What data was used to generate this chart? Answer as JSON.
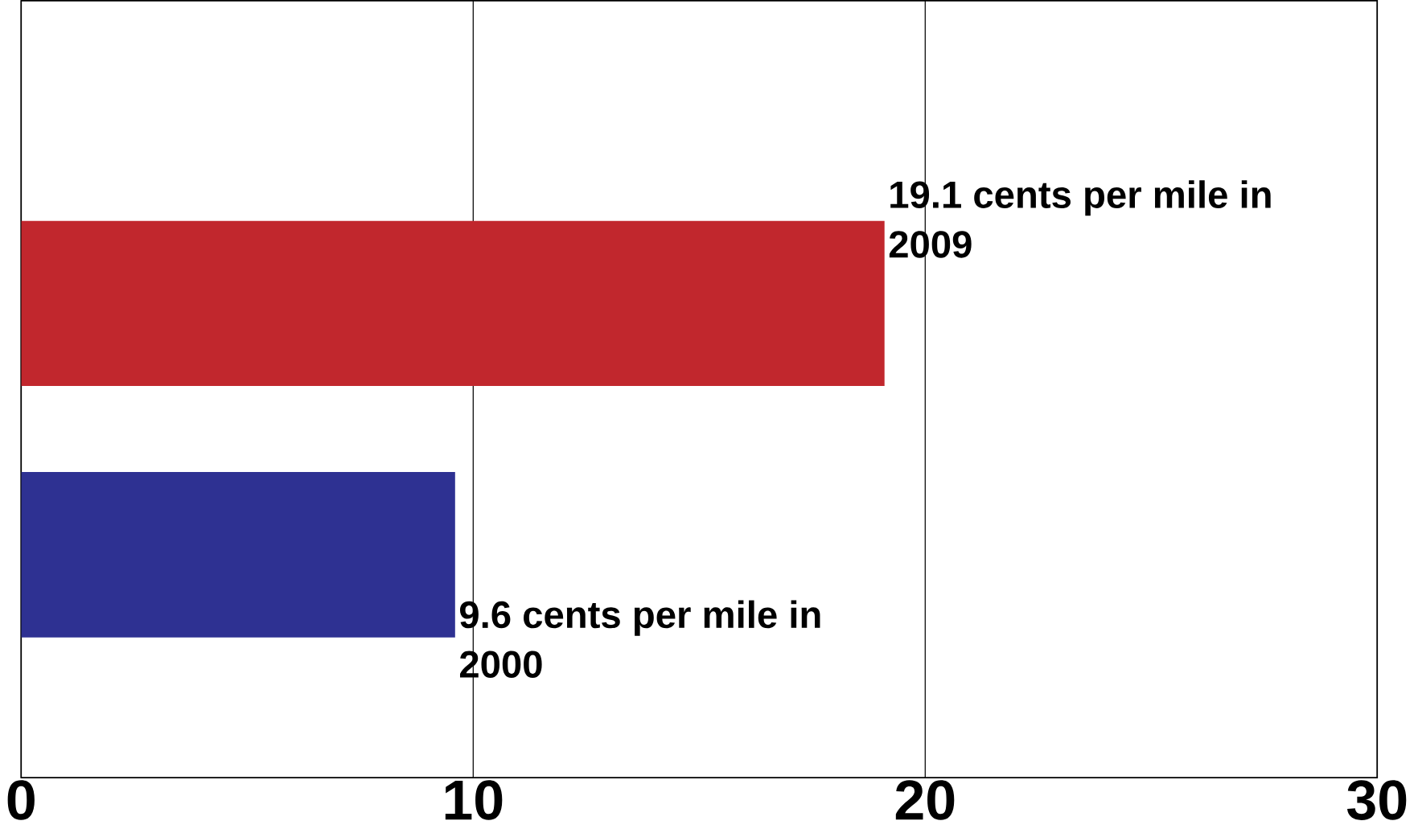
{
  "chart_data": {
    "type": "bar",
    "orientation": "horizontal",
    "categories": [
      null,
      null
    ],
    "values": [
      19.1,
      9.6
    ],
    "colors": [
      "#c1272d",
      "#2e3192"
    ],
    "value_labels": [
      "19.1 cents per mile in 2009",
      "9.6 cents per mile in 2000"
    ],
    "xlim": [
      0,
      30
    ],
    "xticks": [
      0,
      10,
      20,
      30
    ],
    "grid": "x"
  }
}
